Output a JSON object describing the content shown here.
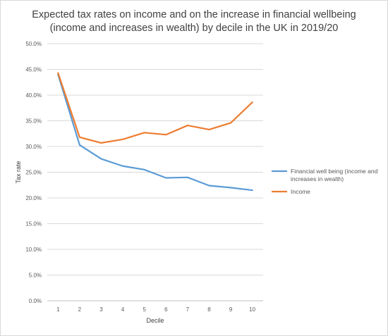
{
  "chart_data": {
    "type": "line",
    "title_line1": "Expected tax rates on income and on the increase in financial wellbeing",
    "title_line2": "(income and increases in wealth) by decile in the UK in 2019/20",
    "xlabel": "Decile",
    "ylabel": "Tax rate",
    "categories": [
      "1",
      "2",
      "3",
      "4",
      "5",
      "6",
      "7",
      "8",
      "9",
      "10"
    ],
    "yticks": [
      "0.0%",
      "5.0%",
      "10.0%",
      "15.0%",
      "20.0%",
      "25.0%",
      "30.0%",
      "35.0%",
      "40.0%",
      "45.0%",
      "50.0%"
    ],
    "ylim": [
      0,
      50
    ],
    "grid": true,
    "legend_position": "right",
    "series": [
      {
        "name": "Financial well being (income and increases in wealth)",
        "legend_lines": [
          "Financial well being (income and",
          "increases in wealth)"
        ],
        "color": "#5b9bd5",
        "values": [
          44.0,
          30.3,
          27.6,
          26.2,
          25.5,
          23.9,
          24.0,
          22.4,
          22.0,
          21.5
        ]
      },
      {
        "name": "Income",
        "legend_lines": [
          "Income"
        ],
        "color": "#ed7d31",
        "values": [
          44.3,
          31.8,
          30.7,
          31.4,
          32.7,
          32.3,
          34.1,
          33.3,
          34.6,
          38.6
        ]
      }
    ]
  }
}
